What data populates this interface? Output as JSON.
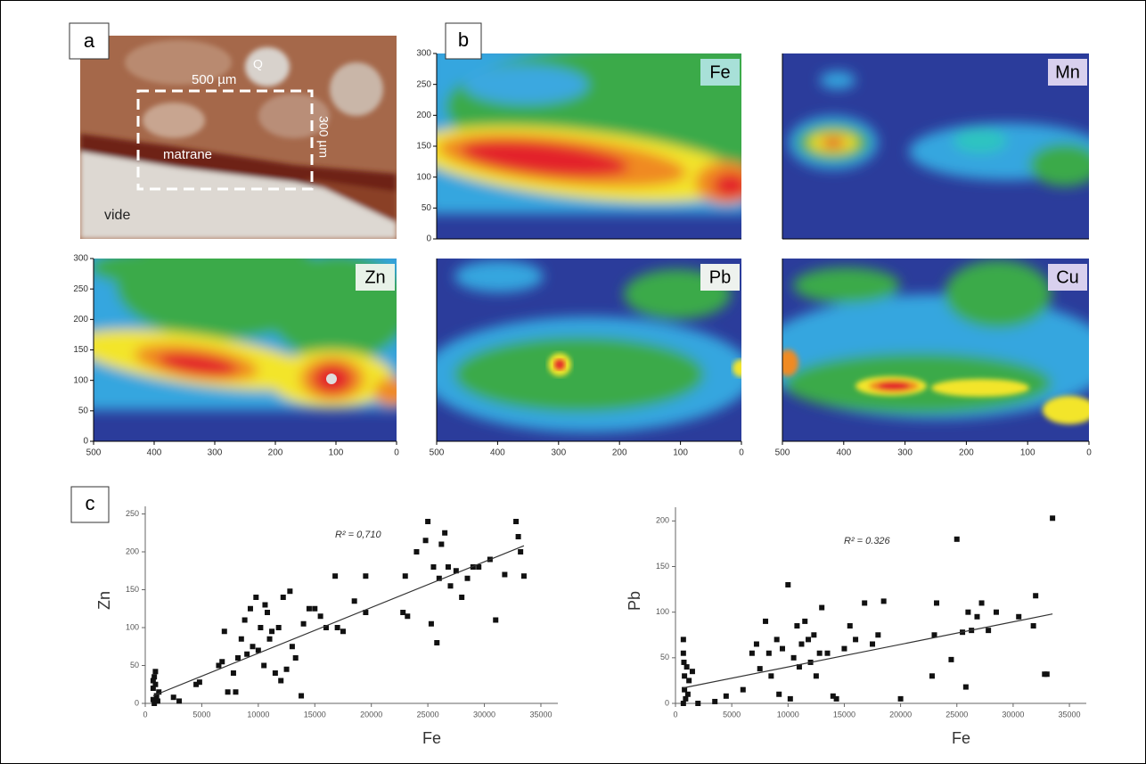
{
  "panel_labels": [
    "a",
    "b",
    "c"
  ],
  "photo": {
    "labels": [
      "500 µm",
      "300 µm",
      "matrane",
      "vide",
      "Q"
    ]
  },
  "chart_data": [
    {
      "type": "heatmap",
      "title": "Fe",
      "ylim": [
        0,
        300
      ],
      "yticks": [
        0,
        50,
        100,
        150,
        200,
        250,
        300
      ]
    },
    {
      "type": "heatmap",
      "title": "Mn"
    },
    {
      "type": "heatmap",
      "title": "Zn",
      "xlim": [
        500,
        0
      ],
      "xticks": [
        500,
        400,
        300,
        200,
        100,
        0
      ],
      "ylim": [
        0,
        300
      ],
      "yticks": [
        0,
        50,
        100,
        150,
        200,
        250,
        300
      ]
    },
    {
      "type": "heatmap",
      "title": "Pb",
      "xlim": [
        500,
        0
      ],
      "xticks": [
        500,
        400,
        300,
        200,
        100,
        0
      ]
    },
    {
      "type": "heatmap",
      "title": "Cu",
      "xlim": [
        500,
        0
      ],
      "xticks": [
        500,
        400,
        300,
        200,
        100,
        0
      ]
    },
    {
      "type": "scatter",
      "x_label": "Fe",
      "y_label": "Zn",
      "annotation": "R² = 0,710",
      "color": "#111111",
      "xlim": [
        0,
        36500
      ],
      "xticks": [
        0,
        5000,
        10000,
        15000,
        20000,
        25000,
        30000,
        35000
      ],
      "ylim": [
        0,
        260
      ],
      "yticks": [
        0,
        50,
        100,
        150,
        200,
        250
      ],
      "x": [
        700,
        700,
        800,
        900,
        1000,
        800,
        1200,
        700,
        900,
        1100,
        2500,
        3000,
        4500,
        4800,
        6500,
        6800,
        7000,
        7300,
        7800,
        8000,
        8200,
        8500,
        8800,
        9000,
        9300,
        9500,
        9800,
        10000,
        10200,
        10500,
        10600,
        10800,
        11000,
        11200,
        11500,
        11800,
        12000,
        12200,
        12500,
        12800,
        13000,
        13300,
        13800,
        14000,
        14500,
        15000,
        15500,
        16000,
        16800,
        17000,
        17500,
        18500,
        19500,
        19500,
        22800,
        23000,
        23200,
        24000,
        24800,
        25000,
        25300,
        25500,
        25800,
        26000,
        26200,
        26500,
        26800,
        27000,
        27500,
        28000,
        28500,
        29000,
        29500,
        30500,
        31000,
        31800,
        32800,
        33000,
        33200,
        33500
      ],
      "values": [
        5,
        20,
        35,
        42,
        10,
        0,
        15,
        30,
        25,
        3,
        8,
        3,
        25,
        28,
        50,
        55,
        95,
        15,
        40,
        15,
        60,
        85,
        110,
        65,
        125,
        75,
        140,
        70,
        100,
        50,
        130,
        120,
        85,
        95,
        40,
        100,
        30,
        140,
        45,
        148,
        75,
        60,
        10,
        105,
        125,
        125,
        115,
        100,
        168,
        100,
        95,
        135,
        168,
        120,
        120,
        168,
        115,
        200,
        215,
        240,
        105,
        180,
        80,
        165,
        210,
        225,
        180,
        155,
        175,
        140,
        165,
        180,
        180,
        190,
        110,
        170,
        240,
        220,
        200,
        168
      ],
      "trendline": {
        "x": [
          700,
          33500
        ],
        "y": [
          10,
          208
        ]
      }
    },
    {
      "type": "scatter",
      "x_label": "Fe",
      "y_label": "Pb",
      "annotation": "R² = 0.326",
      "color": "#111111",
      "xlim": [
        0,
        36500
      ],
      "xticks": [
        0,
        5000,
        10000,
        15000,
        20000,
        25000,
        30000,
        35000
      ],
      "ylim": [
        0,
        215
      ],
      "yticks": [
        0,
        50,
        100,
        150,
        200
      ],
      "x": [
        700,
        700,
        750,
        800,
        800,
        900,
        1000,
        1100,
        1200,
        700,
        1500,
        2000,
        3500,
        4500,
        6000,
        6800,
        7200,
        7500,
        8000,
        8300,
        8500,
        9000,
        9200,
        9500,
        10000,
        10200,
        10500,
        10800,
        11000,
        11200,
        11500,
        11800,
        12000,
        12300,
        12500,
        12800,
        13000,
        13500,
        14000,
        14300,
        15000,
        15500,
        16000,
        16800,
        17500,
        18000,
        18500,
        20000,
        22800,
        23000,
        23200,
        24500,
        25000,
        25500,
        25800,
        26000,
        26300,
        26800,
        27200,
        27800,
        28500,
        30500,
        31800,
        32000,
        32800,
        33000,
        33500
      ],
      "values": [
        70,
        55,
        45,
        30,
        15,
        5,
        40,
        10,
        25,
        0,
        35,
        0,
        2,
        8,
        15,
        55,
        65,
        38,
        90,
        55,
        30,
        70,
        10,
        60,
        130,
        5,
        50,
        85,
        40,
        65,
        90,
        70,
        45,
        75,
        30,
        55,
        105,
        55,
        8,
        5,
        60,
        85,
        70,
        110,
        65,
        75,
        112,
        5,
        30,
        75,
        110,
        48,
        180,
        78,
        18,
        100,
        80,
        95,
        110,
        80,
        100,
        95,
        85,
        118,
        32,
        32,
        203
      ],
      "trendline": {
        "x": [
          700,
          33500
        ],
        "y": [
          17,
          98
        ]
      }
    }
  ]
}
